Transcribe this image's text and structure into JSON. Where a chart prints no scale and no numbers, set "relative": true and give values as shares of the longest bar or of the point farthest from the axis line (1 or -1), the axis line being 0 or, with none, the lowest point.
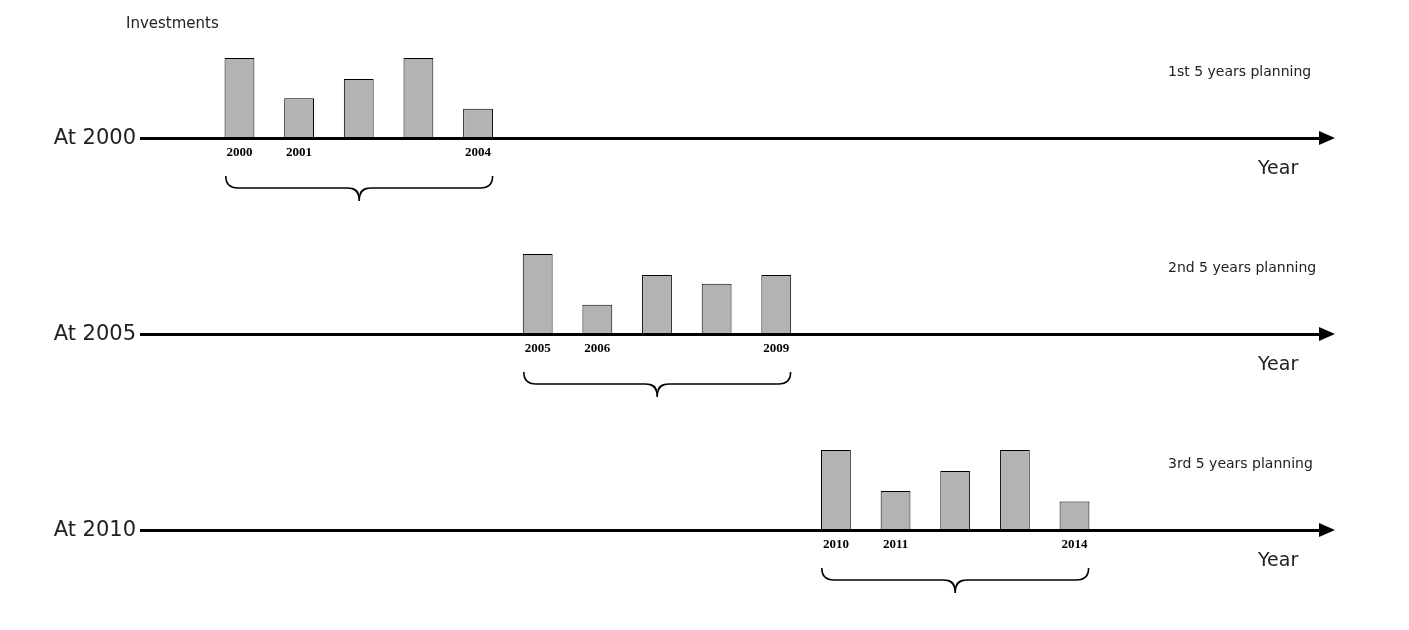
{
  "chart_data": [
    {
      "type": "bar",
      "relative": true,
      "ylabel": "Investments",
      "color": "#b3b3b3",
      "annotations": [
        "At 2000",
        "1st 5 years planning",
        "Year"
      ],
      "categories": [
        "2000",
        "2001",
        null,
        null,
        "2004",
        null,
        null,
        null,
        null,
        null,
        null,
        null,
        null,
        null,
        null
      ],
      "values": [
        1,
        0.5,
        0.74,
        1,
        0.37,
        null,
        null,
        null,
        null,
        null,
        null,
        null,
        null,
        null,
        null
      ]
    },
    {
      "type": "bar",
      "relative": true,
      "color": "#b3b3b3",
      "annotations": [
        "At 2005",
        "2nd 5 years planning",
        "Year"
      ],
      "categories": [
        null,
        null,
        null,
        null,
        null,
        "2005",
        "2006",
        null,
        null,
        "2009",
        null,
        null,
        null,
        null,
        null
      ],
      "values": [
        null,
        null,
        null,
        null,
        null,
        1,
        0.37,
        0.74,
        0.63,
        0.74,
        null,
        null,
        null,
        null,
        null
      ]
    },
    {
      "type": "bar",
      "relative": true,
      "color": "#b3b3b3",
      "annotations": [
        "At 2010",
        "3rd 5 years planning",
        "Year"
      ],
      "categories": [
        null,
        null,
        null,
        null,
        null,
        null,
        null,
        null,
        null,
        null,
        "2010",
        "2011",
        null,
        null,
        "2014"
      ],
      "values": [
        null,
        null,
        null,
        null,
        null,
        null,
        null,
        null,
        null,
        null,
        1,
        0.49,
        0.74,
        1,
        0.36
      ]
    }
  ]
}
